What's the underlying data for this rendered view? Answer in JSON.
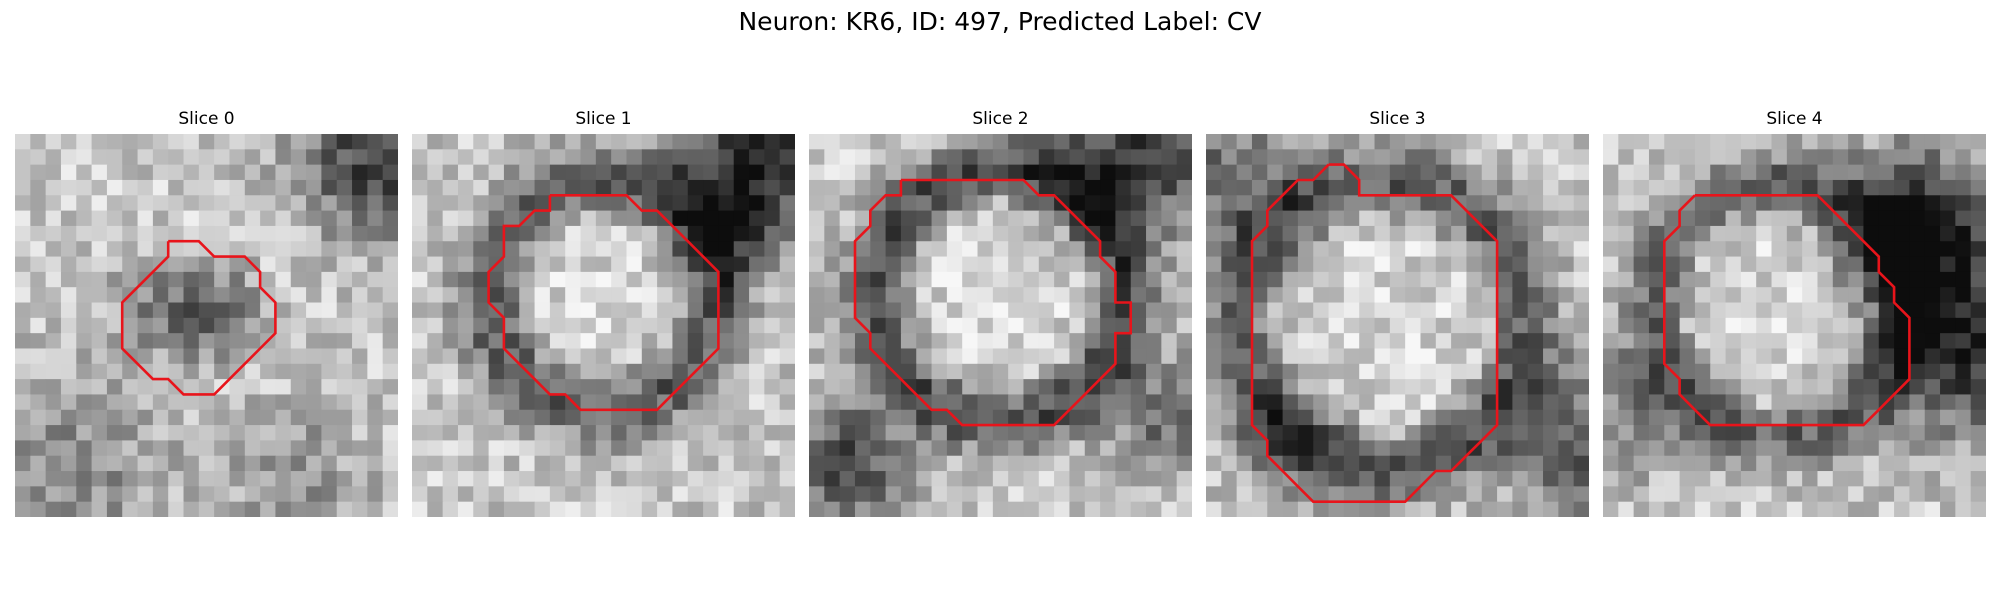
{
  "figure": {
    "title": "Neuron: KR6, ID: 497, Predicted Label: CV"
  },
  "panels": [
    {
      "title": "Slice 0",
      "contour": [
        [
          10,
          7
        ],
        [
          12,
          7
        ],
        [
          13,
          8
        ],
        [
          15,
          8
        ],
        [
          16,
          9
        ],
        [
          16,
          10
        ],
        [
          17,
          11
        ],
        [
          17,
          13
        ],
        [
          16,
          14
        ],
        [
          15,
          15
        ],
        [
          14,
          16
        ],
        [
          13,
          17
        ],
        [
          11,
          17
        ],
        [
          10,
          16
        ],
        [
          9,
          16
        ],
        [
          8,
          15
        ],
        [
          7,
          14
        ],
        [
          7,
          11
        ],
        [
          8,
          10
        ],
        [
          9,
          9
        ],
        [
          10,
          8
        ],
        [
          10,
          7
        ]
      ]
    },
    {
      "title": "Slice 1",
      "contour": [
        [
          9,
          4
        ],
        [
          14,
          4
        ],
        [
          15,
          5
        ],
        [
          16,
          5
        ],
        [
          17,
          6
        ],
        [
          18,
          7
        ],
        [
          19,
          8
        ],
        [
          20,
          9
        ],
        [
          20,
          14
        ],
        [
          19,
          15
        ],
        [
          18,
          16
        ],
        [
          17,
          17
        ],
        [
          16,
          18
        ],
        [
          11,
          18
        ],
        [
          10,
          17
        ],
        [
          9,
          17
        ],
        [
          8,
          16
        ],
        [
          7,
          15
        ],
        [
          6,
          14
        ],
        [
          6,
          12
        ],
        [
          5,
          11
        ],
        [
          5,
          9
        ],
        [
          6,
          8
        ],
        [
          6,
          6
        ],
        [
          7,
          6
        ],
        [
          8,
          5
        ],
        [
          9,
          5
        ],
        [
          9,
          4
        ]
      ]
    },
    {
      "title": "Slice 2",
      "contour": [
        [
          6,
          3
        ],
        [
          14,
          3
        ],
        [
          15,
          4
        ],
        [
          16,
          4
        ],
        [
          17,
          5
        ],
        [
          18,
          6
        ],
        [
          19,
          7
        ],
        [
          19,
          8
        ],
        [
          20,
          9
        ],
        [
          20,
          11
        ],
        [
          21,
          11
        ],
        [
          21,
          13
        ],
        [
          20,
          13
        ],
        [
          20,
          15
        ],
        [
          19,
          16
        ],
        [
          18,
          17
        ],
        [
          17,
          18
        ],
        [
          16,
          19
        ],
        [
          10,
          19
        ],
        [
          9,
          18
        ],
        [
          8,
          18
        ],
        [
          7,
          17
        ],
        [
          6,
          16
        ],
        [
          5,
          15
        ],
        [
          4,
          14
        ],
        [
          4,
          13
        ],
        [
          3,
          12
        ],
        [
          3,
          7
        ],
        [
          4,
          6
        ],
        [
          4,
          5
        ],
        [
          5,
          4
        ],
        [
          6,
          4
        ],
        [
          6,
          3
        ]
      ]
    },
    {
      "title": "Slice 3",
      "contour": [
        [
          8,
          2
        ],
        [
          9,
          2
        ],
        [
          10,
          3
        ],
        [
          10,
          4
        ],
        [
          11,
          4
        ],
        [
          12,
          4
        ],
        [
          16,
          4
        ],
        [
          17,
          5
        ],
        [
          18,
          6
        ],
        [
          19,
          7
        ],
        [
          19,
          19
        ],
        [
          18,
          20
        ],
        [
          17,
          21
        ],
        [
          16,
          22
        ],
        [
          15,
          22
        ],
        [
          14,
          23
        ],
        [
          13,
          24
        ],
        [
          7,
          24
        ],
        [
          6,
          23
        ],
        [
          5,
          22
        ],
        [
          4,
          21
        ],
        [
          4,
          20
        ],
        [
          3,
          19
        ],
        [
          3,
          7
        ],
        [
          4,
          6
        ],
        [
          4,
          5
        ],
        [
          5,
          4
        ],
        [
          6,
          3
        ],
        [
          7,
          3
        ],
        [
          8,
          2
        ]
      ]
    },
    {
      "title": "Slice 4",
      "contour": [
        [
          6,
          4
        ],
        [
          14,
          4
        ],
        [
          15,
          5
        ],
        [
          16,
          6
        ],
        [
          17,
          7
        ],
        [
          18,
          8
        ],
        [
          18,
          9
        ],
        [
          19,
          10
        ],
        [
          19,
          11
        ],
        [
          20,
          12
        ],
        [
          20,
          16
        ],
        [
          19,
          17
        ],
        [
          18,
          18
        ],
        [
          17,
          19
        ],
        [
          7,
          19
        ],
        [
          6,
          18
        ],
        [
          5,
          17
        ],
        [
          5,
          16
        ],
        [
          4,
          15
        ],
        [
          4,
          7
        ],
        [
          5,
          6
        ],
        [
          5,
          5
        ],
        [
          6,
          4
        ]
      ]
    }
  ]
}
